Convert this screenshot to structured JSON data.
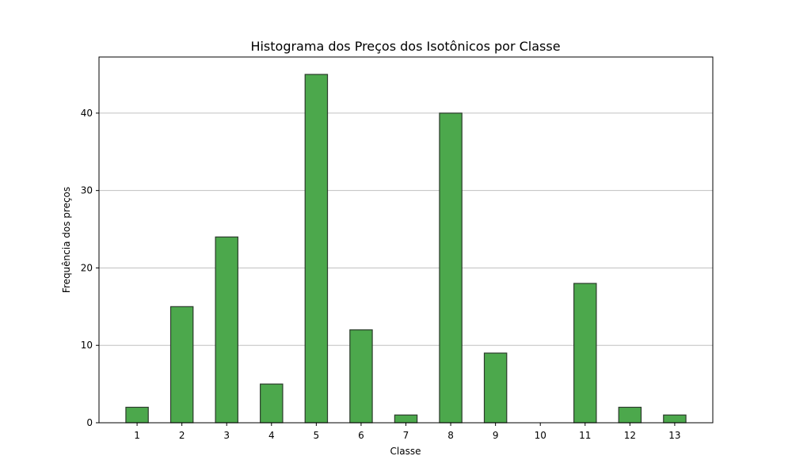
{
  "chart_data": {
    "type": "bar",
    "title": "Histograma dos Preços dos Isotônicos por Classe",
    "xlabel": "Classe",
    "ylabel": "Frequência dos preços",
    "categories": [
      "1",
      "2",
      "3",
      "4",
      "5",
      "6",
      "7",
      "8",
      "9",
      "10",
      "11",
      "12",
      "13"
    ],
    "values": [
      2,
      15,
      24,
      5,
      45,
      12,
      1,
      40,
      9,
      0,
      18,
      2,
      1
    ],
    "ylim": [
      0,
      47.25
    ],
    "yticks": [
      "0",
      "10",
      "20",
      "30",
      "40"
    ],
    "grid": "y-axis",
    "legend": "none",
    "colors": {
      "bar_fill": "#4ca84c",
      "bar_edge": "#2b3b2b",
      "grid": "#c0c0c0",
      "axis": "#000000"
    }
  }
}
